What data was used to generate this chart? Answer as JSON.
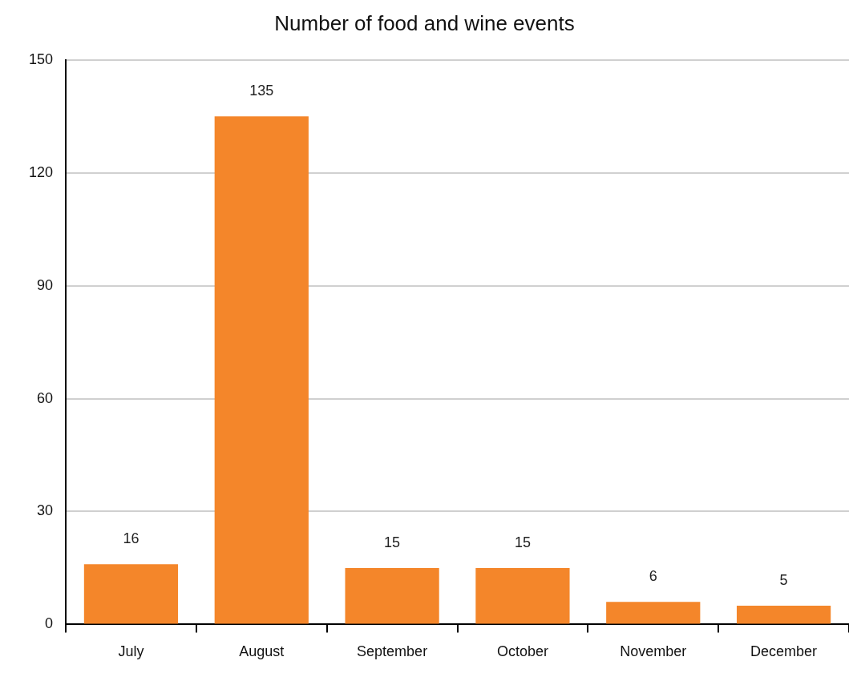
{
  "chart_data": {
    "type": "bar",
    "title": "Number of food and wine events",
    "categories": [
      "July",
      "August",
      "September",
      "October",
      "November",
      "December"
    ],
    "values": [
      16,
      135,
      15,
      15,
      6,
      5
    ],
    "color": "#f4862a",
    "ylim": [
      0,
      150
    ],
    "yticks": [
      0,
      30,
      60,
      90,
      120,
      150
    ],
    "grid": "y",
    "data_labels": true,
    "legend": false
  }
}
